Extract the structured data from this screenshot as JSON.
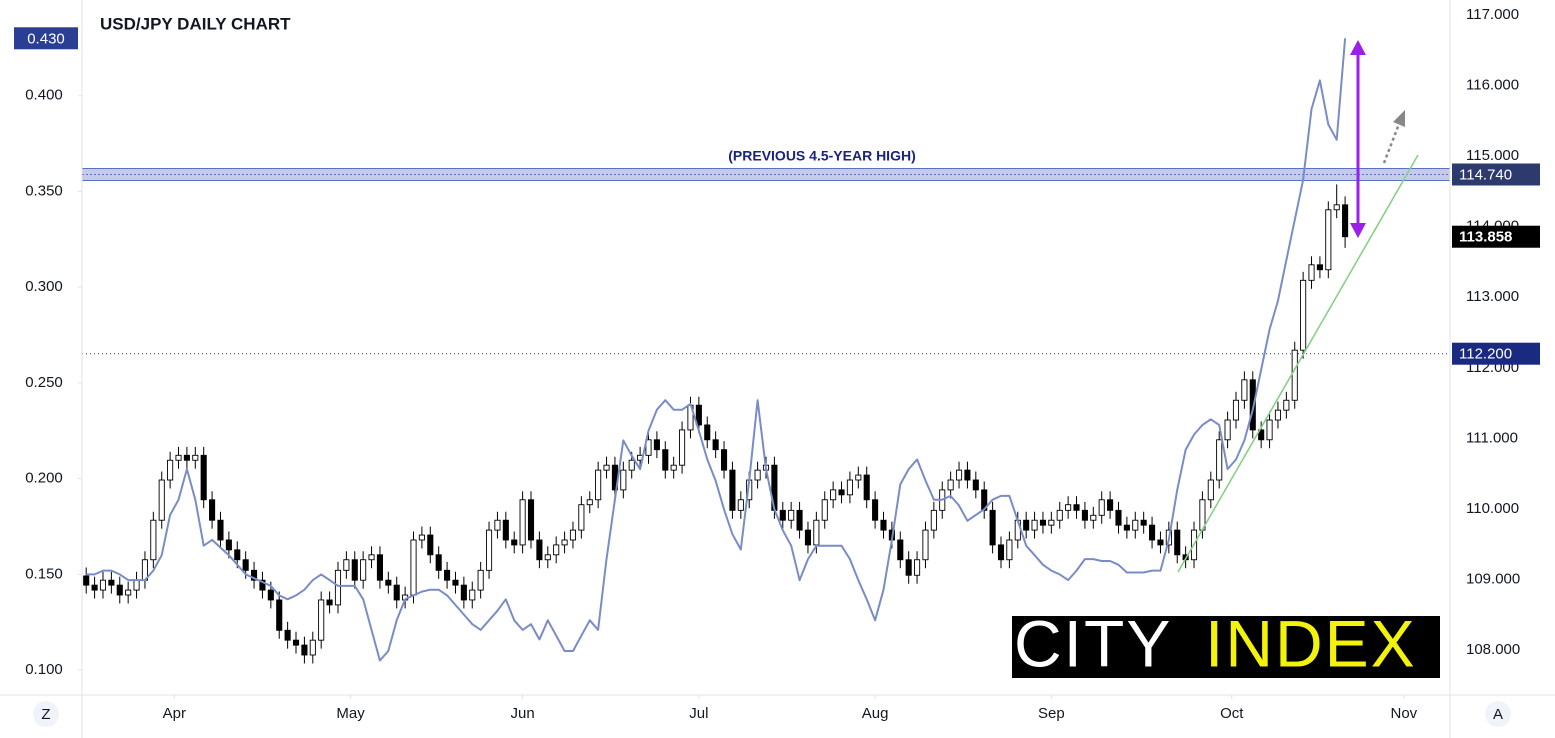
{
  "chart_data": {
    "type": "candlestick",
    "title": "USD/JPY DAILY CHART",
    "annotation": "(PREVIOUS 4.5-YEAR HIGH)",
    "xlim": [
      -0.5,
      162.5
    ],
    "xticks": [
      {
        "value": 10.5,
        "label": "Apr"
      },
      {
        "value": 31.5,
        "label": "May"
      },
      {
        "value": 52,
        "label": "Jun"
      },
      {
        "value": 73,
        "label": "Jul"
      },
      {
        "value": 94,
        "label": "Aug"
      },
      {
        "value": 115,
        "label": "Sep"
      },
      {
        "value": 136.5,
        "label": "Oct"
      },
      {
        "value": 157,
        "label": "Nov"
      }
    ],
    "ylim": [
      107.363,
      117.213
    ],
    "yticks": [
      {
        "value": 108,
        "label": "108.000"
      },
      {
        "value": 109,
        "label": "109.000"
      },
      {
        "value": 110,
        "label": "110.000"
      },
      {
        "value": 111,
        "label": "111.000"
      },
      {
        "value": 112,
        "label": "112.000"
      },
      {
        "value": 113,
        "label": "113.000"
      },
      {
        "value": 114,
        "label": "114.000"
      },
      {
        "value": 115,
        "label": "115.000"
      },
      {
        "value": 116,
        "label": "116.000"
      },
      {
        "value": 117,
        "label": "117.000"
      }
    ],
    "y2lim": [
      0.087,
      0.45
    ],
    "y2ticks": [
      {
        "value": 0.1,
        "label": "0.100"
      },
      {
        "value": 0.15,
        "label": "0.150"
      },
      {
        "value": 0.2,
        "label": "0.200"
      },
      {
        "value": 0.25,
        "label": "0.250"
      },
      {
        "value": 0.3,
        "label": "0.300"
      },
      {
        "value": 0.35,
        "label": "0.350"
      },
      {
        "value": 0.4,
        "label": "0.400"
      }
    ],
    "levels": [
      {
        "value": 114.74,
        "label": "114.740",
        "color": "#2c3a6e"
      },
      {
        "value": 112.2,
        "label": "112.200",
        "color": "#1a2a80"
      }
    ],
    "ohlc": {
      "up_color": "#ffffff",
      "down_color": "#000000",
      "open": [
        109.05,
        108.92,
        108.85,
        108.99,
        108.92,
        108.78,
        108.85,
        108.99,
        109.28,
        109.84,
        110.41,
        110.69,
        110.76,
        110.69,
        110.76,
        110.13,
        109.84,
        109.56,
        109.42,
        109.28,
        109.13,
        108.99,
        108.85,
        108.71,
        108.28,
        108.14,
        108.07,
        107.93,
        108.14,
        108.71,
        108.64,
        109.13,
        109.28,
        108.99,
        109.28,
        109.35,
        108.99,
        108.92,
        108.71,
        108.78,
        109.56,
        109.63,
        109.35,
        109.13,
        108.99,
        108.92,
        108.71,
        108.85,
        109.13,
        109.7,
        109.84,
        109.56,
        109.49,
        110.13,
        109.56,
        109.28,
        109.35,
        109.49,
        109.56,
        109.7,
        110.06,
        110.13,
        110.55,
        110.62,
        110.27,
        110.55,
        110.69,
        110.76,
        110.98,
        110.84,
        110.55,
        110.62,
        111.12,
        111.47,
        111.19,
        110.98,
        110.84,
        110.55,
        109.98,
        110.13,
        110.41,
        110.55,
        110.62,
        109.98,
        109.84,
        109.98,
        109.7,
        109.49,
        109.84,
        110.13,
        110.27,
        110.2,
        110.41,
        110.48,
        110.13,
        109.84,
        109.7,
        109.56,
        109.28,
        109.06,
        109.28,
        109.7,
        109.98,
        110.27,
        110.41,
        110.55,
        110.41,
        110.27,
        109.98,
        109.49,
        109.28,
        109.56,
        109.84,
        109.7,
        109.84,
        109.77,
        109.84,
        109.98,
        110.06,
        109.98,
        109.84,
        109.91,
        110.13,
        109.98,
        109.77,
        109.7,
        109.84,
        109.77,
        109.56,
        109.49,
        109.7,
        109.35,
        109.28,
        109.7,
        110.13,
        110.41,
        110.98,
        111.26,
        111.54,
        111.83,
        111.12,
        110.98,
        111.26,
        111.4,
        111.54,
        112.25,
        113.24,
        113.46,
        113.39,
        114.24,
        114.31
      ],
      "high": [
        109.17,
        109.04,
        109.11,
        109.11,
        109.04,
        108.97,
        109.11,
        109.4,
        109.96,
        110.53,
        110.81,
        110.88,
        110.88,
        110.88,
        110.88,
        110.25,
        109.96,
        109.68,
        109.54,
        109.4,
        109.25,
        109.11,
        108.97,
        108.83,
        108.4,
        108.26,
        108.19,
        108.26,
        108.83,
        108.83,
        109.25,
        109.4,
        109.4,
        109.4,
        109.47,
        109.47,
        109.11,
        109.04,
        108.9,
        109.68,
        109.75,
        109.75,
        109.47,
        109.25,
        109.11,
        109.04,
        108.97,
        109.25,
        109.82,
        109.96,
        109.96,
        109.68,
        110.25,
        110.25,
        109.68,
        109.47,
        109.61,
        109.68,
        109.82,
        110.18,
        110.25,
        110.67,
        110.74,
        110.74,
        110.67,
        110.81,
        110.88,
        111.1,
        111.1,
        110.96,
        110.74,
        111.24,
        111.59,
        111.59,
        111.31,
        111.1,
        110.96,
        110.67,
        110.25,
        110.53,
        110.67,
        110.74,
        110.74,
        110.1,
        110.1,
        110.1,
        109.82,
        109.96,
        110.25,
        110.39,
        110.39,
        110.53,
        110.6,
        110.6,
        110.25,
        109.96,
        109.82,
        109.68,
        109.4,
        109.4,
        109.82,
        110.1,
        110.39,
        110.53,
        110.67,
        110.67,
        110.53,
        110.39,
        110.1,
        109.61,
        109.68,
        109.96,
        109.96,
        109.96,
        109.96,
        109.96,
        110.1,
        110.18,
        110.18,
        110.1,
        110.03,
        110.25,
        110.25,
        110.1,
        109.89,
        109.96,
        109.96,
        109.89,
        109.68,
        109.82,
        109.82,
        109.47,
        109.82,
        110.25,
        110.53,
        111.1,
        111.38,
        111.66,
        111.95,
        111.95,
        111.24,
        111.38,
        111.52,
        111.66,
        112.37,
        113.36,
        113.58,
        113.58,
        114.36,
        114.6,
        114.43
      ],
      "low": [
        108.8,
        108.73,
        108.73,
        108.8,
        108.66,
        108.66,
        108.73,
        108.87,
        109.16,
        109.72,
        110.29,
        110.57,
        110.57,
        110.57,
        110.01,
        109.72,
        109.44,
        109.3,
        109.16,
        109.01,
        108.87,
        108.73,
        108.59,
        108.16,
        108.02,
        107.95,
        107.81,
        107.81,
        108.02,
        108.52,
        108.52,
        109.01,
        108.87,
        108.87,
        109.16,
        108.87,
        108.8,
        108.59,
        108.59,
        108.66,
        109.44,
        109.23,
        109.01,
        108.87,
        108.8,
        108.59,
        108.59,
        108.73,
        109.01,
        109.58,
        109.44,
        109.37,
        109.37,
        109.44,
        109.16,
        109.16,
        109.23,
        109.37,
        109.44,
        109.58,
        109.94,
        110.01,
        110.43,
        110.15,
        110.15,
        110.43,
        110.57,
        110.64,
        110.72,
        110.43,
        110.43,
        110.5,
        111.0,
        111.07,
        110.86,
        110.72,
        110.43,
        109.86,
        109.86,
        110.01,
        110.29,
        110.43,
        109.86,
        109.72,
        109.72,
        109.58,
        109.37,
        109.37,
        109.72,
        110.01,
        110.08,
        110.08,
        110.29,
        110.01,
        109.72,
        109.58,
        109.44,
        109.16,
        108.94,
        108.94,
        109.16,
        109.58,
        109.86,
        110.15,
        110.29,
        110.29,
        110.15,
        109.86,
        109.37,
        109.16,
        109.16,
        109.44,
        109.58,
        109.58,
        109.65,
        109.65,
        109.72,
        109.86,
        109.86,
        109.72,
        109.72,
        109.79,
        109.86,
        109.65,
        109.58,
        109.58,
        109.65,
        109.44,
        109.37,
        109.37,
        109.23,
        109.16,
        109.16,
        109.58,
        110.01,
        110.29,
        110.86,
        111.14,
        111.42,
        111.0,
        110.86,
        110.86,
        111.14,
        111.28,
        111.42,
        112.13,
        113.12,
        113.27,
        113.27,
        114.12,
        113.7
      ],
      "close": [
        108.92,
        108.85,
        108.99,
        108.92,
        108.78,
        108.85,
        108.99,
        109.28,
        109.84,
        110.41,
        110.69,
        110.76,
        110.69,
        110.76,
        110.13,
        109.84,
        109.56,
        109.42,
        109.28,
        109.13,
        108.99,
        108.85,
        108.71,
        108.28,
        108.14,
        108.07,
        107.93,
        108.14,
        108.71,
        108.64,
        109.13,
        109.28,
        108.99,
        109.28,
        109.35,
        108.99,
        108.92,
        108.71,
        108.78,
        109.56,
        109.63,
        109.35,
        109.13,
        108.99,
        108.92,
        108.71,
        108.85,
        109.13,
        109.7,
        109.84,
        109.56,
        109.49,
        110.13,
        109.56,
        109.28,
        109.35,
        109.49,
        109.56,
        109.7,
        110.06,
        110.13,
        110.55,
        110.62,
        110.27,
        110.55,
        110.69,
        110.76,
        110.98,
        110.84,
        110.55,
        110.62,
        111.12,
        111.47,
        111.19,
        110.98,
        110.84,
        110.55,
        109.98,
        110.13,
        110.41,
        110.55,
        110.62,
        109.98,
        109.84,
        109.98,
        109.7,
        109.49,
        109.84,
        110.13,
        110.27,
        110.2,
        110.41,
        110.48,
        110.13,
        109.84,
        109.7,
        109.56,
        109.28,
        109.06,
        109.28,
        109.7,
        109.98,
        110.27,
        110.41,
        110.55,
        110.41,
        110.27,
        109.98,
        109.49,
        109.28,
        109.56,
        109.84,
        109.7,
        109.84,
        109.77,
        109.84,
        109.98,
        110.06,
        109.98,
        109.84,
        109.91,
        110.13,
        109.98,
        109.77,
        109.7,
        109.84,
        109.77,
        109.56,
        109.49,
        109.7,
        109.35,
        109.28,
        109.7,
        110.13,
        110.41,
        110.98,
        111.26,
        111.54,
        111.83,
        111.12,
        110.98,
        111.26,
        111.4,
        111.54,
        112.25,
        113.24,
        113.46,
        113.39,
        114.24,
        114.31,
        113.858
      ],
      "last_label": "113.858"
    },
    "line": {
      "axis": "y2",
      "color": "#7a8cc6",
      "values": [
        0.15,
        0.15,
        0.152,
        0.152,
        0.15,
        0.147,
        0.147,
        0.147,
        0.152,
        0.16,
        0.181,
        0.189,
        0.205,
        0.189,
        0.165,
        0.168,
        0.164,
        0.16,
        0.155,
        0.15,
        0.148,
        0.146,
        0.144,
        0.139,
        0.137,
        0.139,
        0.142,
        0.147,
        0.15,
        0.147,
        0.144,
        0.144,
        0.144,
        0.137,
        0.121,
        0.105,
        0.11,
        0.126,
        0.137,
        0.139,
        0.141,
        0.142,
        0.142,
        0.139,
        0.134,
        0.129,
        0.124,
        0.121,
        0.126,
        0.131,
        0.137,
        0.126,
        0.121,
        0.124,
        0.116,
        0.126,
        0.118,
        0.11,
        0.11,
        0.118,
        0.126,
        0.121,
        0.158,
        0.189,
        0.22,
        0.212,
        0.205,
        0.225,
        0.236,
        0.241,
        0.236,
        0.236,
        0.239,
        0.225,
        0.21,
        0.199,
        0.184,
        0.171,
        0.163,
        0.199,
        0.241,
        0.205,
        0.184,
        0.173,
        0.165,
        0.147,
        0.158,
        0.165,
        0.165,
        0.165,
        0.165,
        0.158,
        0.147,
        0.137,
        0.126,
        0.142,
        0.168,
        0.197,
        0.205,
        0.21,
        0.199,
        0.189,
        0.189,
        0.191,
        0.186,
        0.178,
        0.181,
        0.184,
        0.189,
        0.191,
        0.191,
        0.178,
        0.165,
        0.16,
        0.155,
        0.152,
        0.15,
        0.147,
        0.152,
        0.158,
        0.158,
        0.157,
        0.157,
        0.155,
        0.151,
        0.151,
        0.151,
        0.152,
        0.152,
        0.168,
        0.194,
        0.215,
        0.223,
        0.228,
        0.231,
        0.228,
        0.205,
        0.21,
        0.22,
        0.236,
        0.257,
        0.278,
        0.293,
        0.314,
        0.335,
        0.356,
        0.393,
        0.408,
        0.385,
        0.377,
        0.43
      ],
      "last_label": "0.430"
    },
    "logo": [
      "CITY",
      "INDEX"
    ],
    "corner_buttons": [
      "Z",
      "A"
    ]
  }
}
